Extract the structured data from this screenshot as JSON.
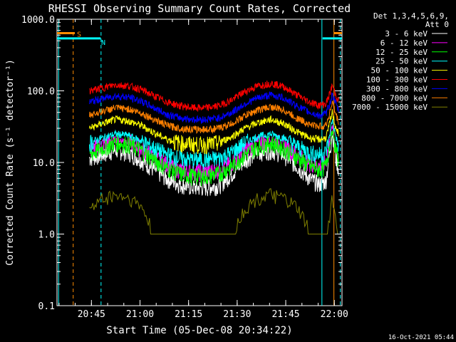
{
  "chart_data": {
    "type": "line",
    "title": "RHESSI Observing Summary Count Rates, Corrected",
    "xlabel": "Start Time (05-Dec-08 20:34:22)",
    "ylabel": "Corrected Count Rate (s⁻¹ detector⁻¹)",
    "y_scale": "log",
    "ylim": [
      0.1,
      1000
    ],
    "xlim_minutes_from_start": [
      0,
      88
    ],
    "y_tick_labels": [
      "0.1",
      "1.0",
      "10.0",
      "100.0",
      "1000.0"
    ],
    "y_tick_values": [
      0.1,
      1,
      10,
      100,
      1000
    ],
    "x_tick_labels": [
      "20:45",
      "21:00",
      "21:15",
      "21:30",
      "21:45",
      "22:00"
    ],
    "x_tick_minutes": [
      10.63,
      25.63,
      40.63,
      55.63,
      70.63,
      85.63
    ],
    "legend_header": [
      "Det 1,3,4,5,6,9,",
      "Att 0"
    ],
    "legend_position": "top-right outside",
    "flags": [
      {
        "label": "S",
        "color": "#ff8c00",
        "segments": [
          [
            0,
            5.5
          ],
          [
            85.5,
            88
          ]
        ],
        "value": 640
      },
      {
        "label": "N",
        "color": "#00ffff",
        "segments": [
          [
            0,
            13.5
          ],
          [
            82,
            88
          ]
        ],
        "value": 540
      }
    ],
    "vertical_lines": [
      {
        "minute": 0.5,
        "color": "#00ffff",
        "style": "solid"
      },
      {
        "minute": 5.0,
        "color": "#ff8c00",
        "style": "dashed"
      },
      {
        "minute": 13.6,
        "color": "#00ffff",
        "style": "dashed"
      },
      {
        "minute": 81.8,
        "color": "#00ffff",
        "style": "solid"
      },
      {
        "minute": 85.5,
        "color": "#ff8c00",
        "style": "solid"
      },
      {
        "minute": 87.5,
        "color": "#00ffff",
        "style": "dashed"
      }
    ],
    "x": [
      10,
      14,
      18,
      22,
      26,
      30,
      34,
      38,
      42,
      46,
      50,
      54,
      58,
      62,
      66,
      70,
      74,
      78,
      81,
      83,
      84,
      85,
      86,
      87
    ],
    "series": [
      {
        "name": "3 - 6 keV",
        "color": "#ffffff",
        "values": [
          11.5,
          13,
          15,
          14,
          11,
          8,
          6,
          5,
          4.5,
          4.5,
          4.8,
          7,
          11,
          14,
          15,
          13,
          9,
          6,
          5,
          5.5,
          12,
          25,
          12,
          8
        ]
      },
      {
        "name": "6 - 12 keV",
        "color": "#ff00ff",
        "values": [
          15,
          18,
          21,
          20,
          16,
          12,
          9.5,
          8,
          7.5,
          7.5,
          8,
          10,
          15,
          19,
          21,
          18,
          13,
          10,
          9,
          10,
          18,
          32,
          18,
          12
        ]
      },
      {
        "name": "12 - 25 keV",
        "color": "#00ff00",
        "values": [
          13,
          16,
          19,
          18,
          15,
          11,
          8.5,
          7,
          6.5,
          6.5,
          7,
          9,
          13,
          17,
          19,
          16,
          12,
          9,
          8,
          9,
          16,
          28,
          16,
          10
        ]
      },
      {
        "name": "25 - 50 keV",
        "color": "#00ffff",
        "values": [
          19,
          22,
          25,
          24,
          20,
          16,
          13,
          11.5,
          11,
          11,
          11.5,
          14,
          19,
          23,
          25,
          22,
          17,
          14,
          13,
          14,
          22,
          40,
          24,
          16
        ]
      },
      {
        "name": "50 - 100 keV",
        "color": "#ffff00",
        "values": [
          30,
          35,
          40,
          38,
          33,
          26,
          21,
          19,
          18,
          18,
          19,
          23,
          30,
          36,
          40,
          35,
          27,
          22,
          21,
          22,
          32,
          50,
          32,
          24
        ]
      },
      {
        "name": "100 - 300 keV",
        "color": "#ff0000",
        "values": [
          100,
          110,
          122,
          118,
          105,
          85,
          70,
          62,
          58,
          58,
          62,
          75,
          98,
          117,
          128,
          115,
          88,
          70,
          63,
          66,
          85,
          120,
          90,
          70
        ]
      },
      {
        "name": "300 - 800 keV",
        "color": "#0000ff",
        "values": [
          70,
          78,
          85,
          82,
          72,
          58,
          47,
          42,
          40,
          40,
          42,
          50,
          66,
          80,
          88,
          80,
          62,
          50,
          45,
          48,
          62,
          90,
          68,
          52
        ]
      },
      {
        "name": "800 - 7000 keV",
        "color": "#ff8000",
        "values": [
          46,
          52,
          58,
          56,
          49,
          40,
          33,
          30,
          29,
          29,
          30,
          35,
          45,
          54,
          60,
          54,
          42,
          34,
          32,
          33,
          45,
          70,
          48,
          36
        ]
      },
      {
        "name": "7000 - 15000 keV",
        "color": "#808000",
        "values": [
          2.3,
          3.2,
          3.6,
          3.3,
          2.5,
          1,
          1,
          1,
          1,
          1,
          1,
          1,
          2.3,
          3.2,
          3.6,
          3.2,
          2.4,
          1.2,
          1,
          1,
          1.5,
          3.5,
          1.6,
          1
        ]
      }
    ]
  },
  "timestamp": "16-Oct-2021 05:44"
}
